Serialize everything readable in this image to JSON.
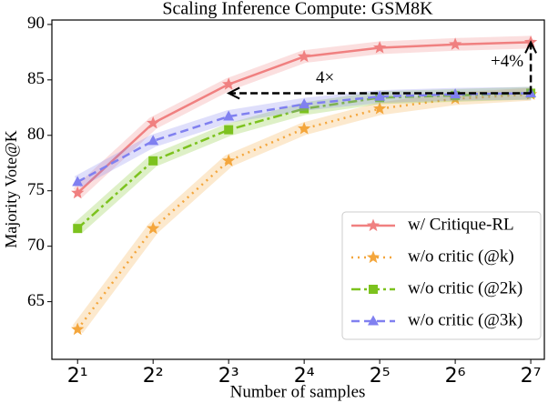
{
  "chart_data": {
    "type": "line",
    "title": "Scaling Inference Compute: GSM8K",
    "x_label": "Number of samples",
    "y_label": "Majority Vote@K",
    "x": [
      2,
      4,
      8,
      16,
      32,
      64,
      128
    ],
    "x_scale": "log2",
    "xlim": [
      1.58,
      145
    ],
    "xticks": [
      {
        "value": 2,
        "label": "2¹"
      },
      {
        "value": 4,
        "label": "2²"
      },
      {
        "value": 8,
        "label": "2³"
      },
      {
        "value": 16,
        "label": "2⁴"
      },
      {
        "value": 32,
        "label": "2⁵"
      },
      {
        "value": 64,
        "label": "2⁶"
      },
      {
        "value": 128,
        "label": "2⁷"
      }
    ],
    "ylim": [
      59.8,
      90.4
    ],
    "yticks": [
      65,
      70,
      75,
      80,
      85,
      90
    ],
    "legend": "lower right",
    "series": [
      {
        "name": "w/ Critique-RL",
        "color": "#f08080",
        "dash": "solid",
        "marker": "star",
        "values": [
          74.8,
          81.1,
          84.6,
          87.1,
          87.9,
          88.2,
          88.4
        ]
      },
      {
        "name": "w/o critic (@k)",
        "color": "#f4a63c",
        "dash": "dotted",
        "marker": "star",
        "values": [
          62.5,
          71.6,
          77.7,
          80.6,
          82.4,
          83.3,
          83.7
        ]
      },
      {
        "name": "w/o critic (@2k)",
        "color": "#7cc21e",
        "dash": "dashdot",
        "marker": "square",
        "values": [
          71.6,
          77.7,
          80.5,
          82.4,
          83.4,
          83.6,
          83.8
        ]
      },
      {
        "name": "w/o critic (@3k)",
        "color": "#8080f0",
        "dash": "dashed",
        "marker": "triangle",
        "values": [
          75.8,
          79.5,
          81.7,
          82.8,
          83.5,
          83.7,
          83.8
        ]
      }
    ],
    "annotations": [
      "4×",
      "+4%"
    ]
  }
}
